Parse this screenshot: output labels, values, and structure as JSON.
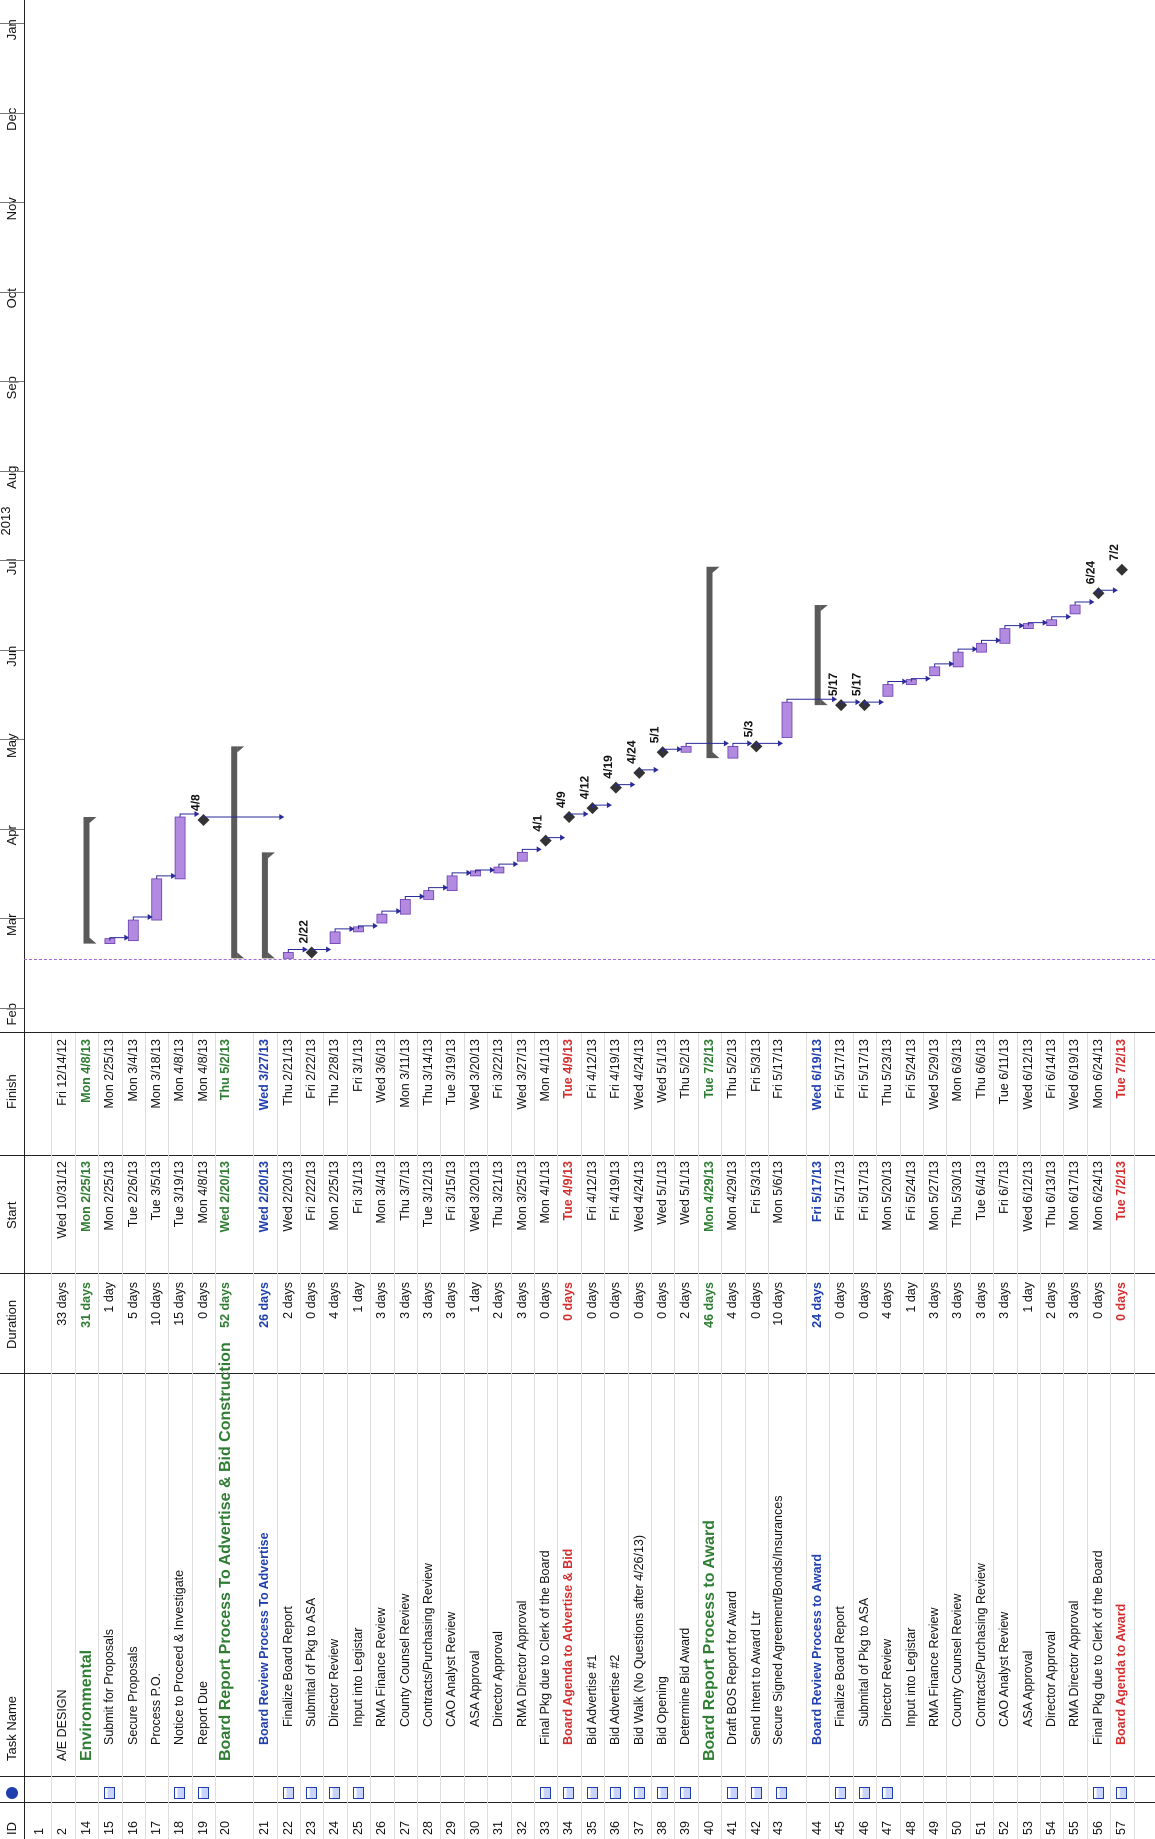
{
  "columns": {
    "id": "ID",
    "task_name": "Task Name",
    "duration": "Duration",
    "start": "Start",
    "finish": "Finish"
  },
  "timescale": {
    "year": "2013",
    "months": [
      "Feb",
      "Mar",
      "Apr",
      "May",
      "Jun",
      "Jul",
      "Aug",
      "Sep",
      "Oct",
      "Nov",
      "Dec",
      "Jan"
    ]
  },
  "tasks": [
    {
      "id": "1",
      "name": "",
      "duration": "",
      "start": "",
      "finish": "",
      "type": "plain",
      "note": false
    },
    {
      "id": "2",
      "name": "A/E DESIGN",
      "duration": "33 days",
      "start": "Wed 10/31/12",
      "finish": "Fri 12/14/12",
      "type": "plain",
      "note": false
    },
    {
      "id": "14",
      "name": "Environmental",
      "duration": "31 days",
      "start": "Mon 2/25/13",
      "finish": "Mon 4/8/13",
      "type": "bigsum",
      "note": false,
      "bar": {
        "from": "2013-02-25",
        "to": "2013-04-08",
        "kind": "summary"
      }
    },
    {
      "id": "15",
      "name": "Submit for Proposals",
      "duration": "1 day",
      "start": "Mon 2/25/13",
      "finish": "Mon 2/25/13",
      "type": "lvl2",
      "note": true,
      "bar": {
        "from": "2013-02-25",
        "to": "2013-02-25",
        "kind": "task"
      }
    },
    {
      "id": "16",
      "name": "Secure Proposals",
      "duration": "5 days",
      "start": "Tue 2/26/13",
      "finish": "Mon 3/4/13",
      "type": "lvl2",
      "note": false,
      "bar": {
        "from": "2013-02-26",
        "to": "2013-03-04",
        "kind": "task"
      }
    },
    {
      "id": "17",
      "name": "Process P.O.",
      "duration": "10 days",
      "start": "Tue 3/5/13",
      "finish": "Mon 3/18/13",
      "type": "lvl2",
      "note": false,
      "bar": {
        "from": "2013-03-05",
        "to": "2013-03-18",
        "kind": "task"
      }
    },
    {
      "id": "18",
      "name": "Notice to Proceed & Investigate",
      "duration": "15 days",
      "start": "Tue 3/19/13",
      "finish": "Mon 4/8/13",
      "type": "lvl2",
      "note": true,
      "bar": {
        "from": "2013-03-19",
        "to": "2013-04-08",
        "kind": "task"
      }
    },
    {
      "id": "19",
      "name": "Report Due",
      "duration": "0 days",
      "start": "Mon 4/8/13",
      "finish": "Mon 4/8/13",
      "type": "lvl2",
      "note": true,
      "bar": {
        "from": "2013-04-08",
        "to": "2013-04-08",
        "kind": "milestone",
        "label": "4/8"
      }
    },
    {
      "id": "20",
      "name": "Board Report Process To Advertise & Bid Construction",
      "duration": "52 days",
      "start": "Wed 2/20/13",
      "finish": "Thu 5/2/13",
      "type": "bigsum",
      "two": true,
      "note": false,
      "bar": {
        "from": "2013-02-20",
        "to": "2013-05-02",
        "kind": "summary"
      }
    },
    {
      "id": "21",
      "name": "Board Review Process To Advertise",
      "duration": "26 days",
      "start": "Wed 2/20/13",
      "finish": "Wed 3/27/13",
      "type": "sum",
      "note": false,
      "bar": {
        "from": "2013-02-20",
        "to": "2013-03-27",
        "kind": "summary"
      }
    },
    {
      "id": "22",
      "name": "Finalize Board Report",
      "duration": "2 days",
      "start": "Wed 2/20/13",
      "finish": "Thu 2/21/13",
      "type": "lvl3",
      "note": true,
      "bar": {
        "from": "2013-02-20",
        "to": "2013-02-21",
        "kind": "task"
      }
    },
    {
      "id": "23",
      "name": "Submital of Pkg to ASA",
      "duration": "0 days",
      "start": "Fri 2/22/13",
      "finish": "Fri 2/22/13",
      "type": "lvl3",
      "note": true,
      "bar": {
        "from": "2013-02-22",
        "to": "2013-02-22",
        "kind": "milestone",
        "label": "2/22"
      }
    },
    {
      "id": "24",
      "name": "Director Review",
      "duration": "4 days",
      "start": "Mon 2/25/13",
      "finish": "Thu 2/28/13",
      "type": "lvl3",
      "note": true,
      "bar": {
        "from": "2013-02-25",
        "to": "2013-02-28",
        "kind": "task"
      }
    },
    {
      "id": "25",
      "name": "Input into Legistar",
      "duration": "1 day",
      "start": "Fri 3/1/13",
      "finish": "Fri 3/1/13",
      "type": "lvl3",
      "note": true,
      "bar": {
        "from": "2013-03-01",
        "to": "2013-03-01",
        "kind": "task"
      }
    },
    {
      "id": "26",
      "name": "RMA Finance Review",
      "duration": "3 days",
      "start": "Mon 3/4/13",
      "finish": "Wed 3/6/13",
      "type": "lvl3",
      "note": false,
      "bar": {
        "from": "2013-03-04",
        "to": "2013-03-06",
        "kind": "task"
      }
    },
    {
      "id": "27",
      "name": "County Counsel Review",
      "duration": "3 days",
      "start": "Thu 3/7/13",
      "finish": "Mon 3/11/13",
      "type": "lvl3",
      "note": false,
      "bar": {
        "from": "2013-03-07",
        "to": "2013-03-11",
        "kind": "task"
      }
    },
    {
      "id": "28",
      "name": "Contracts/Purchasing Review",
      "duration": "3 days",
      "start": "Tue 3/12/13",
      "finish": "Thu 3/14/13",
      "type": "lvl3",
      "note": false,
      "bar": {
        "from": "2013-03-12",
        "to": "2013-03-14",
        "kind": "task"
      }
    },
    {
      "id": "29",
      "name": "CAO Analyst Review",
      "duration": "3 days",
      "start": "Fri 3/15/13",
      "finish": "Tue 3/19/13",
      "type": "lvl3",
      "note": false,
      "bar": {
        "from": "2013-03-15",
        "to": "2013-03-19",
        "kind": "task"
      }
    },
    {
      "id": "30",
      "name": "ASA Approval",
      "duration": "1 day",
      "start": "Wed 3/20/13",
      "finish": "Wed 3/20/13",
      "type": "lvl3",
      "note": false,
      "bar": {
        "from": "2013-03-20",
        "to": "2013-03-20",
        "kind": "task"
      }
    },
    {
      "id": "31",
      "name": "Director Approval",
      "duration": "2 days",
      "start": "Thu 3/21/13",
      "finish": "Fri 3/22/13",
      "type": "lvl3",
      "note": false,
      "bar": {
        "from": "2013-03-21",
        "to": "2013-03-22",
        "kind": "task"
      }
    },
    {
      "id": "32",
      "name": "RMA Director Approval",
      "duration": "3 days",
      "start": "Mon 3/25/13",
      "finish": "Wed 3/27/13",
      "type": "lvl3",
      "note": false,
      "bar": {
        "from": "2013-03-25",
        "to": "2013-03-27",
        "kind": "task"
      }
    },
    {
      "id": "33",
      "name": "Final Pkg due to Clerk of the Board",
      "duration": "0 days",
      "start": "Mon 4/1/13",
      "finish": "Mon 4/1/13",
      "type": "lvl2",
      "note": true,
      "bar": {
        "from": "2013-04-01",
        "to": "2013-04-01",
        "kind": "milestone",
        "label": "4/1"
      }
    },
    {
      "id": "34",
      "name": "Board Agenda to  Advertise & Bid",
      "duration": "0 days",
      "start": "Tue 4/9/13",
      "finish": "Tue 4/9/13",
      "type": "red",
      "note": true,
      "bar": {
        "from": "2013-04-09",
        "to": "2013-04-09",
        "kind": "milestone",
        "label": "4/9"
      }
    },
    {
      "id": "35",
      "name": "Bid Advertise #1",
      "duration": "0 days",
      "start": "Fri 4/12/13",
      "finish": "Fri 4/12/13",
      "type": "lvl2",
      "note": true,
      "bar": {
        "from": "2013-04-12",
        "to": "2013-04-12",
        "kind": "milestone",
        "label": "4/12"
      }
    },
    {
      "id": "36",
      "name": "Bid Advertise #2",
      "duration": "0 days",
      "start": "Fri 4/19/13",
      "finish": "Fri 4/19/13",
      "type": "lvl2",
      "note": true,
      "bar": {
        "from": "2013-04-19",
        "to": "2013-04-19",
        "kind": "milestone",
        "label": "4/19"
      }
    },
    {
      "id": "37",
      "name": "Bid Walk (No Questions after 4/26/13)",
      "duration": "0 days",
      "start": "Wed 4/24/13",
      "finish": "Wed 4/24/13",
      "type": "lvl2",
      "note": true,
      "bar": {
        "from": "2013-04-24",
        "to": "2013-04-24",
        "kind": "milestone",
        "label": "4/24"
      }
    },
    {
      "id": "38",
      "name": "Bid Opening",
      "duration": "0 days",
      "start": "Wed 5/1/13",
      "finish": "Wed 5/1/13",
      "type": "lvl2",
      "note": true,
      "bar": {
        "from": "2013-05-01",
        "to": "2013-05-01",
        "kind": "milestone",
        "label": "5/1"
      }
    },
    {
      "id": "39",
      "name": "Determine Bid Award",
      "duration": "2 days",
      "start": "Wed 5/1/13",
      "finish": "Thu 5/2/13",
      "type": "lvl2",
      "note": true,
      "bar": {
        "from": "2013-05-01",
        "to": "2013-05-02",
        "kind": "task"
      }
    },
    {
      "id": "40",
      "name": "Board Report Process to Award",
      "duration": "46 days",
      "start": "Mon 4/29/13",
      "finish": "Tue 7/2/13",
      "type": "bigsum",
      "note": false,
      "bar": {
        "from": "2013-04-29",
        "to": "2013-07-02",
        "kind": "summary"
      }
    },
    {
      "id": "41",
      "name": "Draft BOS Report for Award",
      "duration": "4 days",
      "start": "Mon 4/29/13",
      "finish": "Thu 5/2/13",
      "type": "lvl2",
      "note": true,
      "bar": {
        "from": "2013-04-29",
        "to": "2013-05-02",
        "kind": "task"
      }
    },
    {
      "id": "42",
      "name": "Send Intent to Award Ltr",
      "duration": "0 days",
      "start": "Fri 5/3/13",
      "finish": "Fri 5/3/13",
      "type": "lvl2",
      "note": true,
      "bar": {
        "from": "2013-05-03",
        "to": "2013-05-03",
        "kind": "milestone",
        "label": "5/3"
      }
    },
    {
      "id": "43",
      "name": "Secure Signed Agreement/Bonds/Insurances",
      "duration": "10 days",
      "start": "Mon 5/6/13",
      "finish": "Fri 5/17/13",
      "type": "lvl2",
      "two": true,
      "note": true,
      "bar": {
        "from": "2013-05-06",
        "to": "2013-05-17",
        "kind": "task"
      }
    },
    {
      "id": "44",
      "name": "Board Review Process to Award",
      "duration": "24 days",
      "start": "Fri 5/17/13",
      "finish": "Wed 6/19/13",
      "type": "sum",
      "note": false,
      "bar": {
        "from": "2013-05-17",
        "to": "2013-06-19",
        "kind": "summary"
      }
    },
    {
      "id": "45",
      "name": "Finalize Board Report",
      "duration": "0 days",
      "start": "Fri 5/17/13",
      "finish": "Fri 5/17/13",
      "type": "lvl3",
      "note": true,
      "bar": {
        "from": "2013-05-17",
        "to": "2013-05-17",
        "kind": "milestone",
        "label": "5/17"
      }
    },
    {
      "id": "46",
      "name": "Submital of Pkg to ASA",
      "duration": "0 days",
      "start": "Fri 5/17/13",
      "finish": "Fri 5/17/13",
      "type": "lvl3",
      "note": true,
      "bar": {
        "from": "2013-05-17",
        "to": "2013-05-17",
        "kind": "milestone",
        "label": "5/17"
      }
    },
    {
      "id": "47",
      "name": "Director Review",
      "duration": "4 days",
      "start": "Mon 5/20/13",
      "finish": "Thu 5/23/13",
      "type": "lvl3",
      "note": true,
      "bar": {
        "from": "2013-05-20",
        "to": "2013-05-23",
        "kind": "task"
      }
    },
    {
      "id": "48",
      "name": "Input into Legistar",
      "duration": "1 day",
      "start": "Fri 5/24/13",
      "finish": "Fri 5/24/13",
      "type": "lvl3",
      "note": false,
      "bar": {
        "from": "2013-05-24",
        "to": "2013-05-24",
        "kind": "task"
      }
    },
    {
      "id": "49",
      "name": "RMA Finance Review",
      "duration": "3 days",
      "start": "Mon 5/27/13",
      "finish": "Wed 5/29/13",
      "type": "lvl3",
      "note": false,
      "bar": {
        "from": "2013-05-27",
        "to": "2013-05-29",
        "kind": "task"
      }
    },
    {
      "id": "50",
      "name": "County Counsel Review",
      "duration": "3 days",
      "start": "Thu 5/30/13",
      "finish": "Mon 6/3/13",
      "type": "lvl3",
      "note": false,
      "bar": {
        "from": "2013-05-30",
        "to": "2013-06-03",
        "kind": "task"
      }
    },
    {
      "id": "51",
      "name": "Contracts/Purchasing Review",
      "duration": "3 days",
      "start": "Tue 6/4/13",
      "finish": "Thu 6/6/13",
      "type": "lvl3",
      "note": false,
      "bar": {
        "from": "2013-06-04",
        "to": "2013-06-06",
        "kind": "task"
      }
    },
    {
      "id": "52",
      "name": "CAO Analyst Review",
      "duration": "3 days",
      "start": "Fri 6/7/13",
      "finish": "Tue 6/11/13",
      "type": "lvl3",
      "note": false,
      "bar": {
        "from": "2013-06-07",
        "to": "2013-06-11",
        "kind": "task"
      }
    },
    {
      "id": "53",
      "name": "ASA Approval",
      "duration": "1 day",
      "start": "Wed 6/12/13",
      "finish": "Wed 6/12/13",
      "type": "lvl3",
      "note": false,
      "bar": {
        "from": "2013-06-12",
        "to": "2013-06-12",
        "kind": "task"
      }
    },
    {
      "id": "54",
      "name": "Director Approval",
      "duration": "2 days",
      "start": "Thu 6/13/13",
      "finish": "Fri 6/14/13",
      "type": "lvl3",
      "note": false,
      "bar": {
        "from": "2013-06-13",
        "to": "2013-06-14",
        "kind": "task"
      }
    },
    {
      "id": "55",
      "name": "RMA Director Approval",
      "duration": "3 days",
      "start": "Mon 6/17/13",
      "finish": "Wed 6/19/13",
      "type": "lvl3",
      "note": false,
      "bar": {
        "from": "2013-06-17",
        "to": "2013-06-19",
        "kind": "task"
      }
    },
    {
      "id": "56",
      "name": "Final Pkg due to Clerk of the Board",
      "duration": "0 days",
      "start": "Mon 6/24/13",
      "finish": "Mon 6/24/13",
      "type": "lvl2",
      "note": true,
      "bar": {
        "from": "2013-06-24",
        "to": "2013-06-24",
        "kind": "milestone",
        "label": "6/24"
      }
    },
    {
      "id": "57",
      "name": "Board Agenda to Award",
      "duration": "0 days",
      "start": "Tue 7/2/13",
      "finish": "Tue 7/2/13",
      "type": "red",
      "note": true,
      "bar": {
        "from": "2013-07-02",
        "to": "2013-07-02",
        "kind": "milestone",
        "label": "7/2"
      }
    }
  ],
  "colors": {
    "task_bar": "#b28ae0",
    "task_bar_border": "#6b3fb0",
    "summary_bar": "#5a5a5a",
    "milestone": "#333333",
    "link": "#2a2a9a",
    "green_text": "#2e7d32",
    "blue_text": "#1f3fae",
    "red_text": "#d32f2f"
  }
}
